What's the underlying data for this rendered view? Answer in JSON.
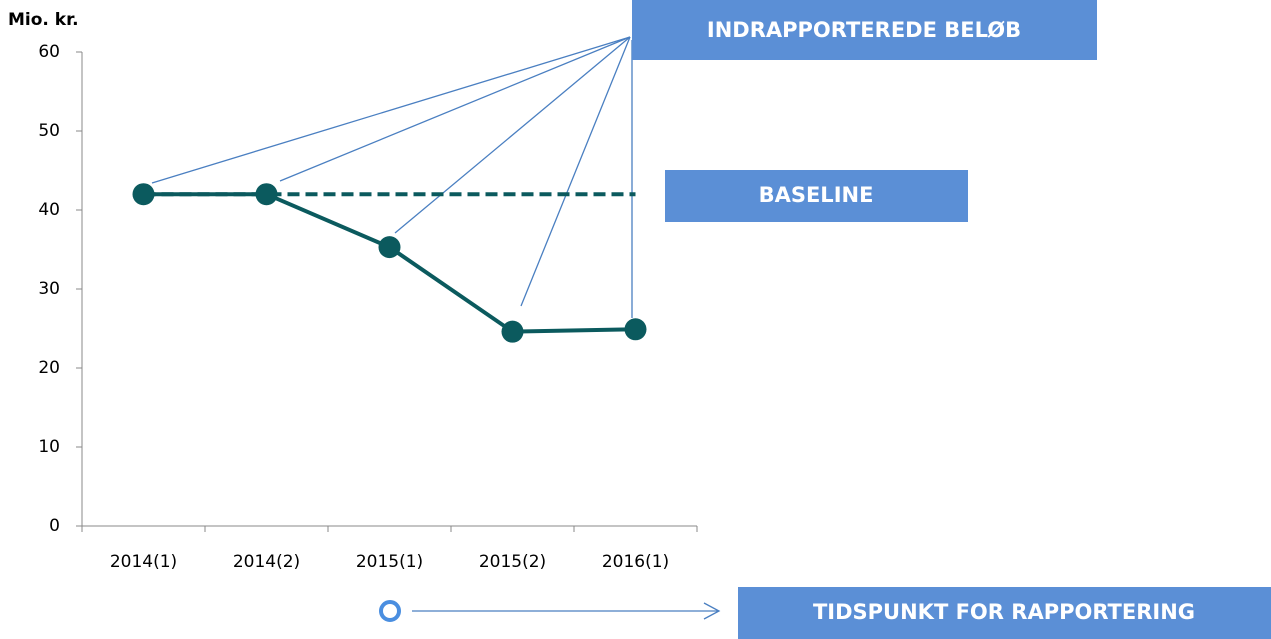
{
  "chart_data": {
    "type": "line",
    "y_label": "Mio. kr.",
    "categories": [
      "2014(1)",
      "2014(2)",
      "2015(1)",
      "2015(2)",
      "2016(1)"
    ],
    "series": [
      {
        "color": "#0b5a5e",
        "values": [
          42,
          42,
          35.3,
          24.6,
          24.9
        ]
      },
      {
        "color": "#0b5a5e",
        "dashed": true,
        "values": [
          42,
          42,
          42,
          42,
          42
        ]
      }
    ],
    "ylim": [
      0,
      60
    ],
    "yticks": [
      0,
      10,
      20,
      30,
      40,
      50,
      60
    ],
    "annotations": [
      "INDRAPPORTEREDE BELØB",
      "BASELINE",
      "TIDSPUNKT FOR RAPPORTERING"
    ]
  }
}
